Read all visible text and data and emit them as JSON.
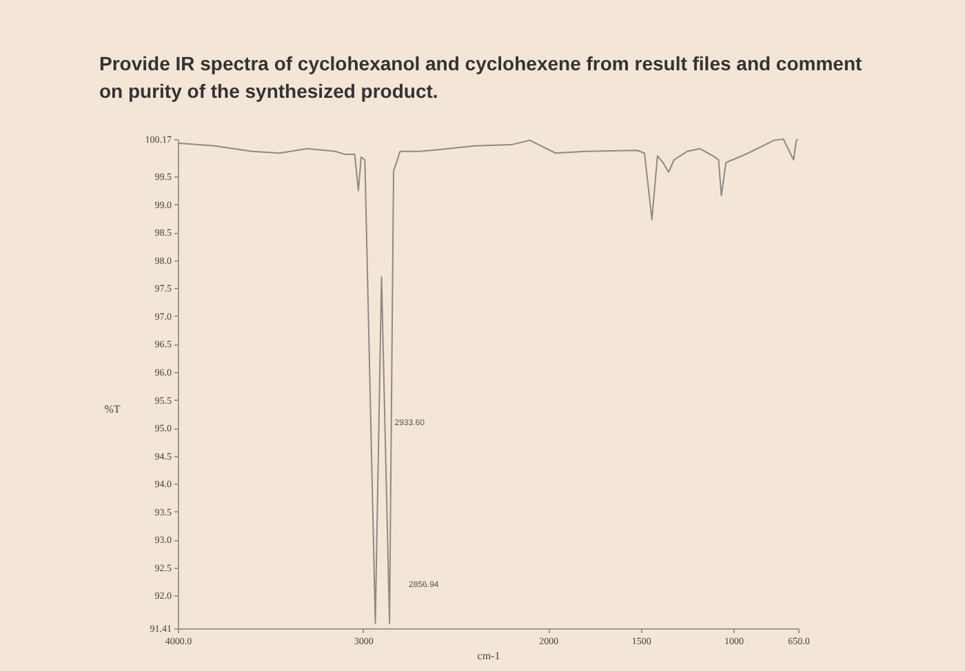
{
  "chart_data": {
    "type": "line",
    "title": "Provide IR spectra of cyclohexanol and cyclohexene from result files and comment on purity of the synthesized product.",
    "xlabel": "cm-1",
    "ylabel": "%T",
    "x": [
      4000,
      3800,
      3600,
      3450,
      3300,
      3150,
      3100,
      3045,
      3025,
      3010,
      2990,
      2933.6,
      2900,
      2856.9,
      2835,
      2800,
      2700,
      2600,
      2400,
      2200,
      2100,
      1960,
      1800,
      1520,
      1480,
      1440,
      1410,
      1380,
      1350,
      1320,
      1250,
      1180,
      1110,
      1080,
      1065,
      1040,
      920,
      780,
      730,
      675,
      660,
      650
    ],
    "series": [
      {
        "color": "#8c8a86",
        "values": [
          100.1,
          100.05,
          99.95,
          99.92,
          100.0,
          99.95,
          99.9,
          99.9,
          99.25,
          99.85,
          99.8,
          91.5,
          97.7,
          91.5,
          99.6,
          99.95,
          99.95,
          99.98,
          100.05,
          100.07,
          100.15,
          99.92,
          99.95,
          99.97,
          99.92,
          98.73,
          99.87,
          99.75,
          99.58,
          99.8,
          99.95,
          100.0,
          99.87,
          99.8,
          99.16,
          99.75,
          99.92,
          100.15,
          100.17,
          99.8,
          100.15,
          100.17
        ]
      }
    ],
    "xlim": [
      4000,
      650
    ],
    "ylim": [
      91.41,
      100.17
    ],
    "xticks": [
      {
        "value": 4000,
        "label": "4000.0"
      },
      3000,
      2000,
      1500,
      1000,
      {
        "value": 650,
        "label": "650.0"
      }
    ],
    "yticks": [
      {
        "value": 91.41,
        "label": "91.41"
      },
      {
        "value": 92,
        "label": "92.0"
      },
      92.5,
      {
        "value": 93,
        "label": "93.0"
      },
      93.5,
      {
        "value": 94,
        "label": "94.0"
      },
      94.5,
      {
        "value": 95,
        "label": "95.0"
      },
      95.5,
      {
        "value": 96,
        "label": "96.0"
      },
      96.5,
      {
        "value": 97,
        "label": "97.0"
      },
      97.5,
      {
        "value": 98,
        "label": "98.0"
      },
      98.5,
      {
        "value": 99,
        "label": "99.0"
      },
      99.5,
      {
        "value": 100.17,
        "label": "100.17"
      }
    ],
    "annotations": [
      {
        "text": "2933.60",
        "x": 2933.6,
        "y": 95.1
      },
      {
        "text": "2856.94",
        "x": 2856.9,
        "y": 92.2
      }
    ],
    "grid": false,
    "legend": false
  }
}
